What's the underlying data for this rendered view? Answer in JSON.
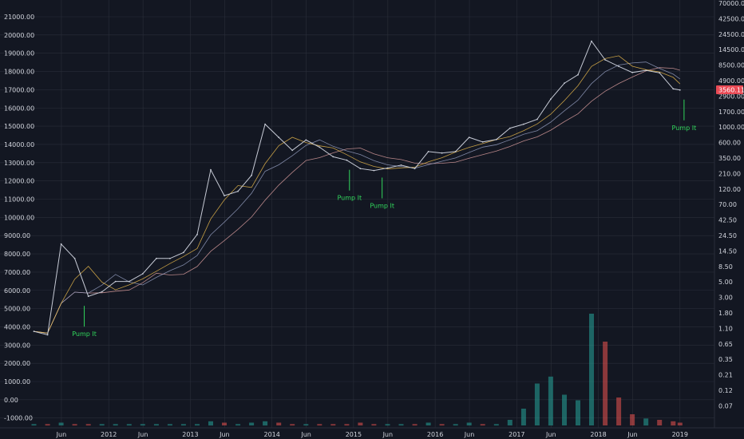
{
  "chart_data": {
    "type": "line",
    "title": "",
    "colors": {
      "background": "#131722",
      "grid": "#2a2e39",
      "price": "#c7cbd6",
      "ma_fast": "#f2c14e",
      "ma_slow": "#e2a2a2",
      "ma_mid": "#9aa4c7",
      "annotation": "#31d65c",
      "badge": "#e84a55",
      "volume_up": "#26a69a",
      "volume_down": "#ef5350"
    },
    "left_axis_ticks": [
      "21000.00",
      "20000.00",
      "19000.00",
      "18000.00",
      "17000.00",
      "16000.00",
      "15000.00",
      "14000.00",
      "13000.00",
      "12000.00",
      "11000.00",
      "10000.00",
      "9000.00",
      "8000.00",
      "7000.00",
      "6000.00",
      "5000.00",
      "4000.00",
      "3000.00",
      "2000.00",
      "1000.00",
      "0.00",
      "-1000.00"
    ],
    "right_axis_ticks": [
      "70000.00",
      "42500.00",
      "24500.00",
      "14500.00",
      "8500.00",
      "4900.00",
      "2900.00",
      "1700.00",
      "1000.00",
      "600.00",
      "350.00",
      "210.00",
      "120.00",
      "70.00",
      "42.50",
      "24.50",
      "14.50",
      "8.50",
      "5.00",
      "3.00",
      "1.80",
      "1.10",
      "0.65",
      "0.35",
      "0.21",
      "0.12",
      "0.07"
    ],
    "x_ticks": [
      "Jun",
      "2012",
      "Jun",
      "2013",
      "Jun",
      "2014",
      "Jun",
      "2015",
      "Jun",
      "2016",
      "Jun",
      "2017",
      "Jun",
      "2018",
      "Jun",
      "2019"
    ],
    "last_price_label": "3560.11",
    "annotations": [
      "Pump It",
      "Pump It",
      "Pump It",
      "Pump It"
    ],
    "series": [
      {
        "name": "",
        "x": [
          "2011-02",
          "2011-04",
          "2011-06",
          "2011-08",
          "2011-10",
          "2011-12",
          "2012-02",
          "2012-04",
          "2012-06",
          "2012-08",
          "2012-10",
          "2012-12",
          "2013-02",
          "2013-04",
          "2013-06",
          "2013-08",
          "2013-10",
          "2013-12",
          "2014-02",
          "2014-04",
          "2014-06",
          "2014-08",
          "2014-10",
          "2014-12",
          "2015-02",
          "2015-04",
          "2015-06",
          "2015-08",
          "2015-10",
          "2015-12",
          "2016-02",
          "2016-04",
          "2016-06",
          "2016-08",
          "2016-10",
          "2016-12",
          "2017-02",
          "2017-04",
          "2017-06",
          "2017-08",
          "2017-10",
          "2017-12",
          "2018-02",
          "2018-04",
          "2018-06",
          "2018-08",
          "2018-10",
          "2018-12",
          "2019-01"
        ],
        "y": [
          0.9,
          0.8,
          18,
          11,
          3,
          3.5,
          5,
          5,
          6.5,
          11,
          11,
          13.5,
          25,
          230,
          95,
          110,
          190,
          1100,
          700,
          450,
          640,
          500,
          360,
          320,
          240,
          225,
          245,
          270,
          240,
          430,
          410,
          430,
          700,
          600,
          650,
          960,
          1100,
          1300,
          2600,
          4500,
          6000,
          19000,
          10000,
          8000,
          6500,
          7000,
          6400,
          3700,
          3560
        ]
      }
    ],
    "volume": [
      1,
      1,
      2,
      1,
      1,
      1,
      1,
      1,
      1,
      1,
      1,
      1,
      1,
      3,
      2,
      1,
      2,
      3,
      2,
      1,
      1,
      1,
      1,
      1,
      2,
      1,
      1,
      1,
      1,
      2,
      1,
      1,
      2,
      1,
      1,
      4,
      12,
      30,
      35,
      22,
      18,
      80,
      60,
      20,
      8,
      5,
      4,
      3,
      2
    ]
  }
}
